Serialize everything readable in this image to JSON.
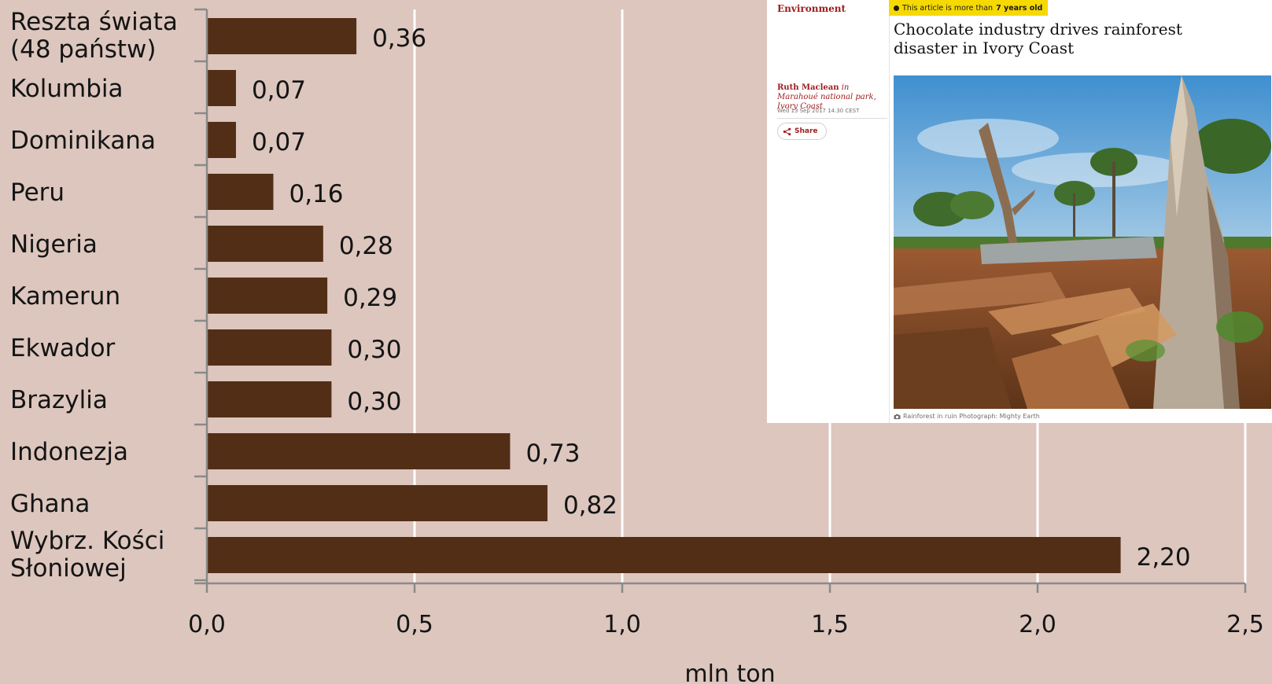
{
  "chart_data": {
    "type": "bar",
    "orientation": "horizontal",
    "categories": [
      [
        "Reszta świata",
        "(48 państw)"
      ],
      [
        "Kolumbia"
      ],
      [
        "Dominikana"
      ],
      [
        "Peru"
      ],
      [
        "Nigeria"
      ],
      [
        "Kamerun"
      ],
      [
        "Ekwador"
      ],
      [
        "Brazylia"
      ],
      [
        "Indonezja"
      ],
      [
        "Ghana"
      ],
      [
        "Wybrz. Kości",
        "Słoniowej"
      ]
    ],
    "values": [
      0.36,
      0.07,
      0.07,
      0.16,
      0.28,
      0.29,
      0.3,
      0.3,
      0.73,
      0.82,
      2.2
    ],
    "value_labels": [
      "0,36",
      "0,07",
      "0,07",
      "0,16",
      "0,28",
      "0,29",
      "0,30",
      "0,30",
      "0,73",
      "0,82",
      "2,20"
    ],
    "xticks": [
      0.0,
      0.5,
      1.0,
      1.5,
      2.0,
      2.5
    ],
    "xtick_labels": [
      "0,0",
      "0,5",
      "1,0",
      "1,5",
      "2,0",
      "2,5"
    ],
    "xlim": [
      0,
      2.5
    ],
    "xlabel": "mln ton",
    "grid": "vertical",
    "bar_color": "#532e17"
  },
  "article": {
    "section": "Environment",
    "age_notice_prefix": "This article is more than",
    "age_notice_bold": "7 years old",
    "headline": "Chocolate industry drives rainforest disaster in Ivory Coast",
    "author": "Ruth Maclean",
    "location": "in Marahoué national park, Ivory Coast",
    "date": "Wed 13 Sep 2017 14.30 CEST",
    "share_label": "Share",
    "caption": "Rainforest in ruin Photograph: Mighty Earth",
    "accent_color": "#a01d1d",
    "badge_color": "#f5d900",
    "icons": [
      "share-icon",
      "camera-icon"
    ]
  }
}
